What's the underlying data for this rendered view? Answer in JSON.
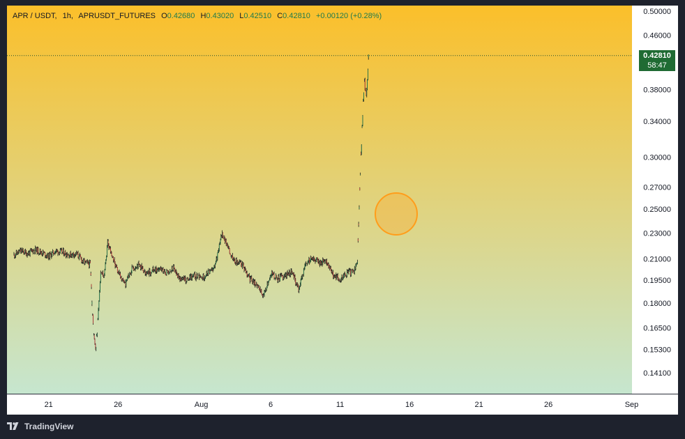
{
  "header": {
    "pair": "APR / USDT,",
    "interval": "1h,",
    "exchange": "APRUSDT_FUTURES",
    "open_label": "O",
    "open": "0.42680",
    "high_label": "H",
    "high": "0.43020",
    "low_label": "L",
    "low": "0.42510",
    "close_label": "C",
    "close": "0.42810",
    "change": "+0.00120 (+0.28%)"
  },
  "price_badge": {
    "price": "0.42810",
    "countdown": "58:47"
  },
  "footer": {
    "brand": "TradingView"
  },
  "colors": {
    "background_top": "#fbbf2a",
    "background_bottom": "#c6e6cf",
    "candle_up": "#1f7a4d",
    "candle_down": "#c2393a",
    "last_price_badge": "#1f6b33",
    "marker_circle": "#ff9d1b"
  },
  "chart_data": {
    "type": "candlestick",
    "y_scale": "log",
    "ylim": [
      0.131,
      0.51
    ],
    "y_ticks": [
      "0.50000",
      "0.46000",
      "0.38000",
      "0.34000",
      "0.30000",
      "0.27000",
      "0.25000",
      "0.23000",
      "0.21000",
      "0.19500",
      "0.18000",
      "0.16500",
      "0.15300",
      "0.14100"
    ],
    "x_ticks": [
      "21",
      "26",
      "Aug",
      "6",
      "11",
      "16",
      "21",
      "26",
      "Sep"
    ],
    "last_price": 0.4281,
    "series": [
      {
        "values": [
          [
            "Jul 18 12:00",
            0.213
          ],
          [
            "Jul 19 00:00",
            0.216
          ],
          [
            "Jul 19 12:00",
            0.214
          ],
          [
            "Jul 20 00:00",
            0.217
          ],
          [
            "Jul 20 12:00",
            0.215
          ],
          [
            "Jul 21 00:00",
            0.212
          ],
          [
            "Jul 21 12:00",
            0.216
          ],
          [
            "Jul 22 00:00",
            0.215
          ],
          [
            "Jul 22 12:00",
            0.213
          ],
          [
            "Jul 23 00:00",
            0.214
          ],
          [
            "Jul 23 12:00",
            0.208
          ],
          [
            "Jul 24 00:00",
            0.206
          ],
          [
            "Jul 24 06:00",
            0.16
          ],
          [
            "Jul 24 09:00",
            0.152
          ],
          [
            "Jul 24 12:00",
            0.163
          ],
          [
            "Jul 24 18:00",
            0.2
          ],
          [
            "Jul 25 00:00",
            0.198
          ],
          [
            "Jul 25 06:00",
            0.222
          ],
          [
            "Jul 25 12:00",
            0.214
          ],
          [
            "Jul 26 00:00",
            0.2
          ],
          [
            "Jul 26 12:00",
            0.192
          ],
          [
            "Jul 27 00:00",
            0.203
          ],
          [
            "Jul 27 12:00",
            0.206
          ],
          [
            "Jul 28 00:00",
            0.199
          ],
          [
            "Jul 28 12:00",
            0.202
          ],
          [
            "Jul 29 00:00",
            0.203
          ],
          [
            "Jul 29 12:00",
            0.2
          ],
          [
            "Jul 30 00:00",
            0.203
          ],
          [
            "Jul 30 12:00",
            0.196
          ],
          [
            "Jul 31 00:00",
            0.195
          ],
          [
            "Jul 31 12:00",
            0.198
          ],
          [
            "Aug 1 00:00",
            0.196
          ],
          [
            "Aug 1 12:00",
            0.2
          ],
          [
            "Aug 2 00:00",
            0.205
          ],
          [
            "Aug 2 12:00",
            0.23
          ],
          [
            "Aug 3 00:00",
            0.216
          ],
          [
            "Aug 3 12:00",
            0.208
          ],
          [
            "Aug 4 00:00",
            0.205
          ],
          [
            "Aug 4 12:00",
            0.196
          ],
          [
            "Aug 5 00:00",
            0.192
          ],
          [
            "Aug 5 12:00",
            0.184
          ],
          [
            "Aug 6 00:00",
            0.2
          ],
          [
            "Aug 6 12:00",
            0.196
          ],
          [
            "Aug 7 00:00",
            0.198
          ],
          [
            "Aug 7 12:00",
            0.201
          ],
          [
            "Aug 8 00:00",
            0.189
          ],
          [
            "Aug 8 12:00",
            0.205
          ],
          [
            "Aug 9 00:00",
            0.212
          ],
          [
            "Aug 9 12:00",
            0.207
          ],
          [
            "Aug 10 00:00",
            0.208
          ],
          [
            "Aug 10 12:00",
            0.198
          ],
          [
            "Aug 11 00:00",
            0.196
          ],
          [
            "Aug 11 12:00",
            0.2
          ],
          [
            "Aug 12 00:00",
            0.201
          ],
          [
            "Aug 12 06:00",
            0.209
          ],
          [
            "Aug 12 09:00",
            0.25
          ],
          [
            "Aug 12 12:00",
            0.3
          ],
          [
            "Aug 12 15:00",
            0.35
          ],
          [
            "Aug 12 18:00",
            0.39
          ],
          [
            "Aug 12 21:00",
            0.37
          ],
          [
            "Aug 13 00:00",
            0.41
          ],
          [
            "Aug 13 01:00",
            0.4281
          ]
        ]
      }
    ]
  }
}
